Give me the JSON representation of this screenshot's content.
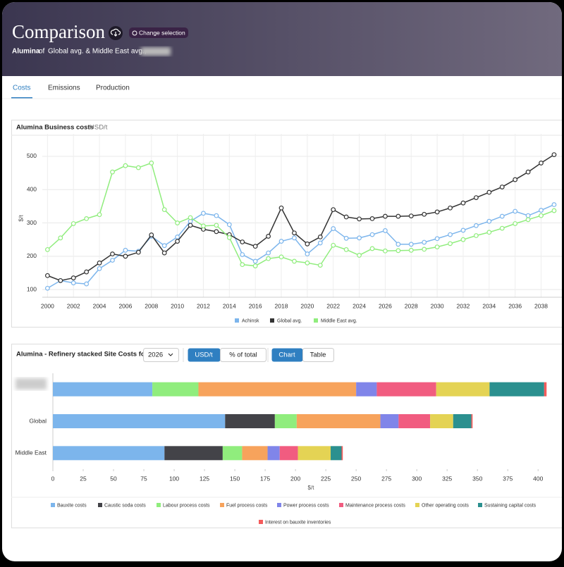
{
  "header": {
    "title": "Comparison",
    "button": "Change selection",
    "subtitle_bold": "Alumina",
    "subtitle_of": "of",
    "subtitle_rest": "Global avg. & Middle East avg.,"
  },
  "tabs": [
    "Costs",
    "Emissions",
    "Production"
  ],
  "chart_data": [
    {
      "type": "line",
      "title": "Alumina Business costs",
      "unit": "USD/t",
      "y_label": "$/t",
      "x": [
        2000,
        2001,
        2002,
        2003,
        2004,
        2005,
        2006,
        2007,
        2008,
        2009,
        2010,
        2011,
        2012,
        2013,
        2014,
        2015,
        2016,
        2017,
        2018,
        2019,
        2020,
        2021,
        2022,
        2023,
        2024,
        2025,
        2026,
        2027,
        2028,
        2029,
        2030,
        2031,
        2032,
        2033,
        2034,
        2035,
        2036,
        2037,
        2038,
        2039
      ],
      "xlim": [
        1999.6,
        2039.6
      ],
      "xticks": [
        2000,
        2002,
        2004,
        2006,
        2008,
        2010,
        2012,
        2014,
        2016,
        2018,
        2020,
        2022,
        2024,
        2026,
        2028,
        2030,
        2032,
        2034,
        2036,
        2038
      ],
      "ylim": [
        77,
        557
      ],
      "yticks": [
        100,
        200,
        300,
        400,
        500
      ],
      "grid": true,
      "legend": "bottom",
      "series": [
        {
          "name": "Achinsk",
          "color": "#7cb5ec",
          "values": [
            104,
            127,
            120,
            117,
            163,
            188,
            218,
            215,
            260,
            232,
            258,
            305,
            329,
            322,
            295,
            205,
            185,
            210,
            245,
            255,
            207,
            240,
            283,
            254,
            255,
            265,
            277,
            236,
            236,
            242,
            253,
            265,
            278,
            292,
            305,
            320,
            335,
            322,
            338,
            355
          ]
        },
        {
          "name": "Global avg.",
          "color": "#333333",
          "values": [
            142,
            127,
            135,
            153,
            180,
            207,
            200,
            212,
            264,
            210,
            245,
            293,
            281,
            274,
            265,
            243,
            230,
            260,
            345,
            270,
            237,
            258,
            340,
            318,
            312,
            313,
            320,
            320,
            321,
            326,
            333,
            345,
            360,
            376,
            392,
            408,
            430,
            453,
            480,
            505
          ]
        },
        {
          "name": "Middle East avg.",
          "color": "#90ed7d",
          "values": [
            220,
            255,
            298,
            313,
            325,
            453,
            472,
            466,
            480,
            340,
            300,
            316,
            291,
            293,
            256,
            175,
            171,
            193,
            198,
            185,
            180,
            173,
            233,
            220,
            203,
            223,
            216,
            217,
            218,
            221,
            228,
            238,
            250,
            262,
            272,
            284,
            298,
            310,
            322,
            337
          ]
        }
      ]
    },
    {
      "type": "bar",
      "orientation": "horizontal",
      "stacked": true,
      "title": "Alumina - Refinery stacked Site Costs for",
      "year_select": "2026",
      "unit_buttons": [
        "USD/t",
        "% of total"
      ],
      "view_buttons": [
        "Chart",
        "Table"
      ],
      "categories": [
        null,
        "Global",
        "Middle East"
      ],
      "x_label": "$/t",
      "xlim": [
        0,
        408
      ],
      "xticks": [
        0,
        25,
        50,
        75,
        100,
        125,
        150,
        175,
        200,
        225,
        250,
        275,
        300,
        325,
        350,
        375,
        400
      ],
      "legend": "bottom",
      "series": [
        {
          "name": "Bauxite costs",
          "color": "#7cb5ec",
          "values": [
            82,
            142,
            92
          ]
        },
        {
          "name": "Caustic soda costs",
          "color": "#434348",
          "values": [
            0,
            41,
            48
          ]
        },
        {
          "name": "Labour process costs",
          "color": "#90ed7d",
          "values": [
            38,
            18,
            16
          ]
        },
        {
          "name": "Fuel process costs",
          "color": "#f7a35c",
          "values": [
            130,
            69,
            21
          ]
        },
        {
          "name": "Power process costs",
          "color": "#8085e9",
          "values": [
            17,
            15,
            10
          ]
        },
        {
          "name": "Maintenance process costs",
          "color": "#f15c80",
          "values": [
            49,
            26,
            15
          ]
        },
        {
          "name": "Other operating costs",
          "color": "#e4d354",
          "values": [
            44,
            19,
            27
          ]
        },
        {
          "name": "Sustaining capital costs",
          "color": "#2b908f",
          "values": [
            45,
            15,
            9
          ]
        },
        {
          "name": "Interest on bauxite inventories",
          "color": "#f45b5b",
          "values": [
            2,
            1,
            1
          ]
        }
      ]
    }
  ]
}
